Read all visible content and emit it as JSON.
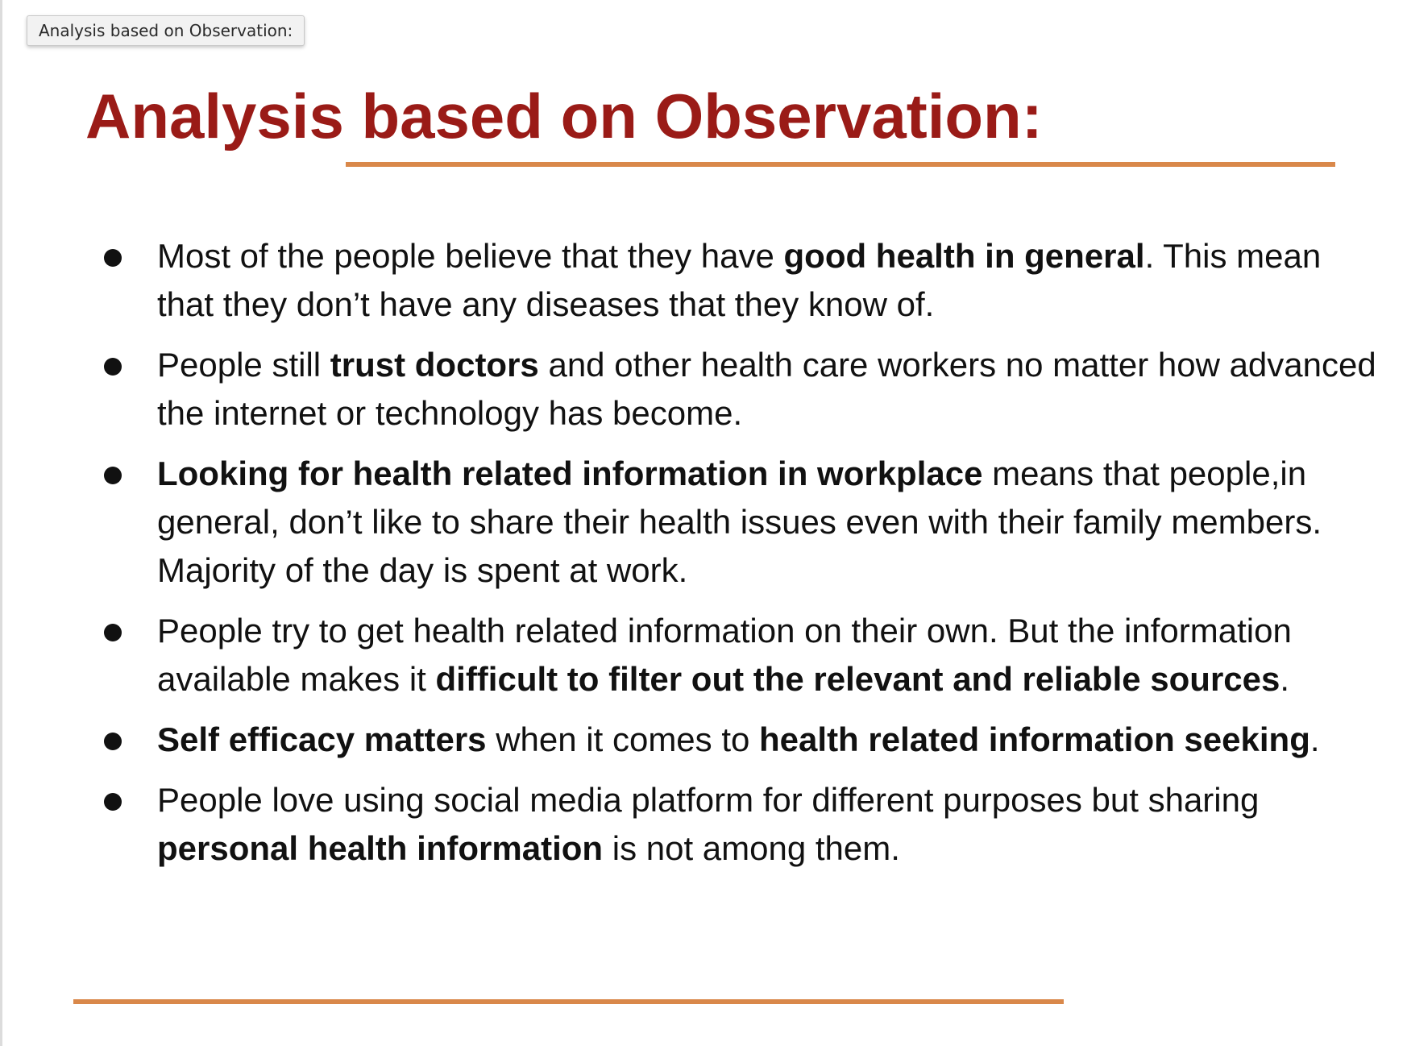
{
  "tooltip": {
    "text": "Analysis based on Observation:"
  },
  "slide": {
    "title": "Analysis based on Observation:",
    "bullets": [
      {
        "t1": "Most of the people believe that they have ",
        "b1": "good health in general",
        "t2": ". This mean that they don’t have any diseases that they know of."
      },
      {
        "t1": "People still ",
        "b1": "trust doctors",
        "t2": " and other health care workers no matter how advanced the internet or technology has become."
      },
      {
        "b1": "Looking for health related information in workplace",
        "t1": " means that people,in general, don’t like to share their health issues even with their family members. Majority of the day is spent at work."
      },
      {
        "t1": "People try to get health related information on their own. But the information available makes it ",
        "b1": "difficult to filter out the relevant and reliable sources",
        "t2": "."
      },
      {
        "b1": "Self efficacy matters",
        "t1": " when it comes to ",
        "b2": "health related information seeking",
        "t2": "."
      },
      {
        "t1": "People love using social media platform for different purposes but sharing ",
        "b1": "personal health information",
        "t2": " is not among them."
      }
    ]
  },
  "colors": {
    "title": "#9a1b17",
    "rule": "#d9884a",
    "text": "#111111"
  }
}
